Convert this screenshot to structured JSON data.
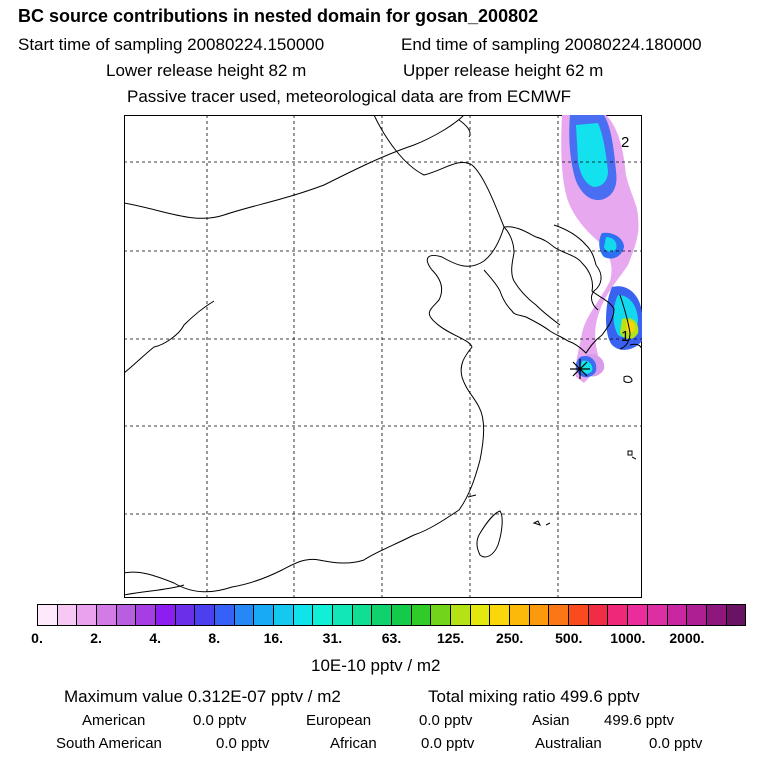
{
  "header": {
    "title": "BC  source contributions in nested domain for gosan_200802",
    "start_label": "Start time of sampling 20080224.150000",
    "end_label": "End time of sampling 20080224.180000",
    "lower_label": "Lower release height   82 m",
    "upper_label": "Upper release height   62 m",
    "tracer_note": "Passive tracer used, meteorological data are from ECMWF"
  },
  "map": {
    "labels": {
      "marker_1": "1",
      "marker_2": "2"
    },
    "colors": {
      "land_outline": "#000000",
      "grid": "#000000",
      "release_marker": "#000000"
    }
  },
  "colorbar": {
    "colors": [
      "#fde9fb",
      "#f7c8f3",
      "#eaa1ee",
      "#d27ae6",
      "#b85ee0",
      "#a53fe4",
      "#8c1ef0",
      "#6b2fea",
      "#4c3ff0",
      "#3561f6",
      "#2488f6",
      "#18aaf4",
      "#14c8f0",
      "#10e3ec",
      "#11efd7",
      "#12e7b7",
      "#10df92",
      "#10d26c",
      "#14cb49",
      "#2fcb28",
      "#72d51a",
      "#b5e214",
      "#e3e80e",
      "#f9d70a",
      "#fcb909",
      "#fb9a0c",
      "#fb7716",
      "#fa4b1f",
      "#f12c45",
      "#f0287a",
      "#ea2c9c",
      "#de2ea3",
      "#c827a1",
      "#ad1f93",
      "#8d177d",
      "#6a1264"
    ],
    "tick_labels": [
      "0.",
      "2.",
      "4.",
      "8.",
      "16.",
      "31.",
      "63.",
      "125.",
      "250.",
      "500.",
      "1000.",
      "2000."
    ],
    "unit": "10E-10 pptv / m2"
  },
  "summary": {
    "max_value": "Maximum value  0.312E-07 pptv / m2",
    "total_mixing": "Total mixing ratio      499.6 pptv",
    "american_label": "American",
    "american_value": "0.0 pptv",
    "european_label": "European",
    "european_value": "0.0 pptv",
    "asian_label": "Asian",
    "asian_value": "499.6 pptv",
    "south_american_label": "South American",
    "south_american_value": "0.0 pptv",
    "african_label": "African",
    "african_value": "0.0 pptv",
    "australian_label": "Australian",
    "australian_value": "0.0 pptv"
  }
}
